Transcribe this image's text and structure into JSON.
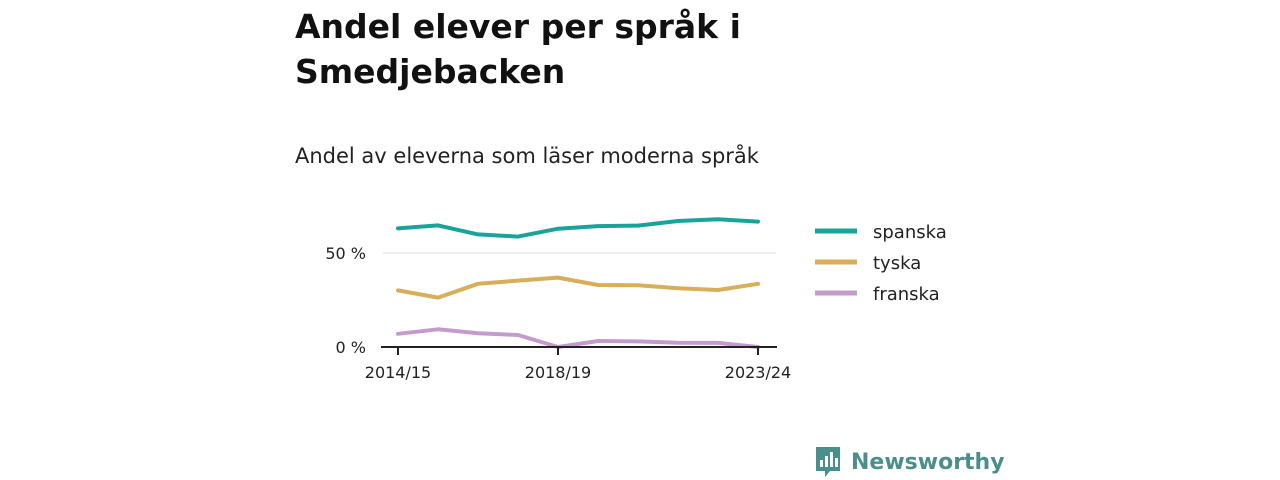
{
  "header": {
    "title": "Andel elever per språk i Smedjebacken",
    "subtitle": "Andel av eleverna som läser moderna språk"
  },
  "brand": {
    "name": "Newsworthy",
    "icon": "bar-chart-logo-icon"
  },
  "colors": {
    "spanska": "#1aa39a",
    "tyska": "#d9ae5a",
    "franska": "#c39ccd",
    "brand": "#4a8f8c"
  },
  "chart_data": {
    "type": "line",
    "x": [
      "2014/15",
      "2015/16",
      "2016/17",
      "2017/18",
      "2018/19",
      "2019/20",
      "2020/21",
      "2021/22",
      "2022/23",
      "2023/24"
    ],
    "x_tick_labels": [
      "2014/15",
      "2018/19",
      "2023/24"
    ],
    "y_ticks": [
      {
        "value": 0,
        "label": "0 %"
      },
      {
        "value": 50,
        "label": "50 %"
      }
    ],
    "ylim": [
      0,
      75
    ],
    "grid": "horizontal",
    "legend_position": "right",
    "series": [
      {
        "name": "spanska",
        "color": "#1aa39a",
        "values": [
          63.1,
          64.7,
          59.9,
          58.7,
          62.9,
          64.3,
          64.6,
          67.0,
          68.0,
          66.7
        ]
      },
      {
        "name": "tyska",
        "color": "#d9ae5a",
        "values": [
          30.1,
          26.3,
          33.6,
          35.3,
          36.9,
          33.0,
          32.8,
          31.3,
          30.3,
          33.6
        ]
      },
      {
        "name": "franska",
        "color": "#c39ccd",
        "values": [
          7.0,
          9.4,
          7.3,
          6.4,
          0.0,
          3.2,
          3.0,
          2.3,
          2.2,
          0.0
        ]
      }
    ]
  }
}
